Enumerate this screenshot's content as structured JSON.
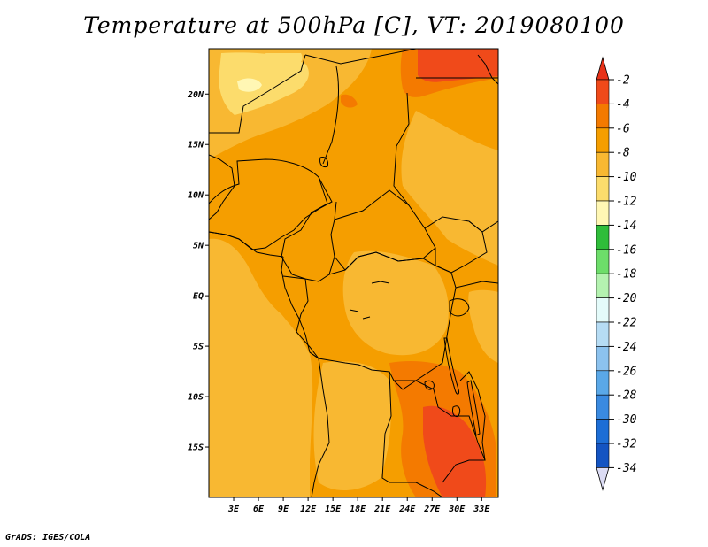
{
  "title": "Temperature at 500hPa [C], VT: 2019080100",
  "credit": "GrADS: IGES/COLA",
  "map": {
    "lat_labels": [
      "20N",
      "15N",
      "10N",
      "5N",
      "EQ",
      "5S",
      "10S",
      "15S"
    ],
    "lat_values": [
      20,
      15,
      10,
      5,
      0,
      -5,
      -10,
      -15
    ],
    "lon_labels": [
      "3E",
      "6E",
      "9E",
      "12E",
      "15E",
      "18E",
      "21E",
      "24E",
      "27E",
      "30E",
      "33E"
    ],
    "lon_values": [
      3,
      6,
      9,
      12,
      15,
      18,
      21,
      24,
      27,
      30,
      33
    ],
    "lat_range": [
      -20,
      24.5
    ],
    "lon_range": [
      0,
      35
    ]
  },
  "colorbar": {
    "labels": [
      "-2",
      "-4",
      "-6",
      "-8",
      "-10",
      "-12",
      "-14",
      "-16",
      "-18",
      "-20",
      "-22",
      "-24",
      "-26",
      "-28",
      "-30",
      "-32",
      "-34"
    ],
    "colors": [
      "#f04a1a",
      "#f47a00",
      "#f59e00",
      "#f8b832",
      "#fcdc6c",
      "#fff7b4",
      "#2fbd3a",
      "#6ddd6a",
      "#b4f2b0",
      "#e4fbfa",
      "#b6dcf4",
      "#8cc2ee",
      "#5aa8e8",
      "#3a8ae0",
      "#1d6ed6",
      "#1454c2",
      "#0a1a7a"
    ],
    "top_arrow": "#e83218",
    "bottom_arrow": "#dcdcf4"
  },
  "temperature_field": {
    "legend_colors": {
      "-2": "#f04a1a",
      "-4": "#f47a00",
      "-6": "#f59e00",
      "-8": "#f8b832",
      "-10": "#fcdc6c",
      "-12": "#fff7b4"
    }
  }
}
